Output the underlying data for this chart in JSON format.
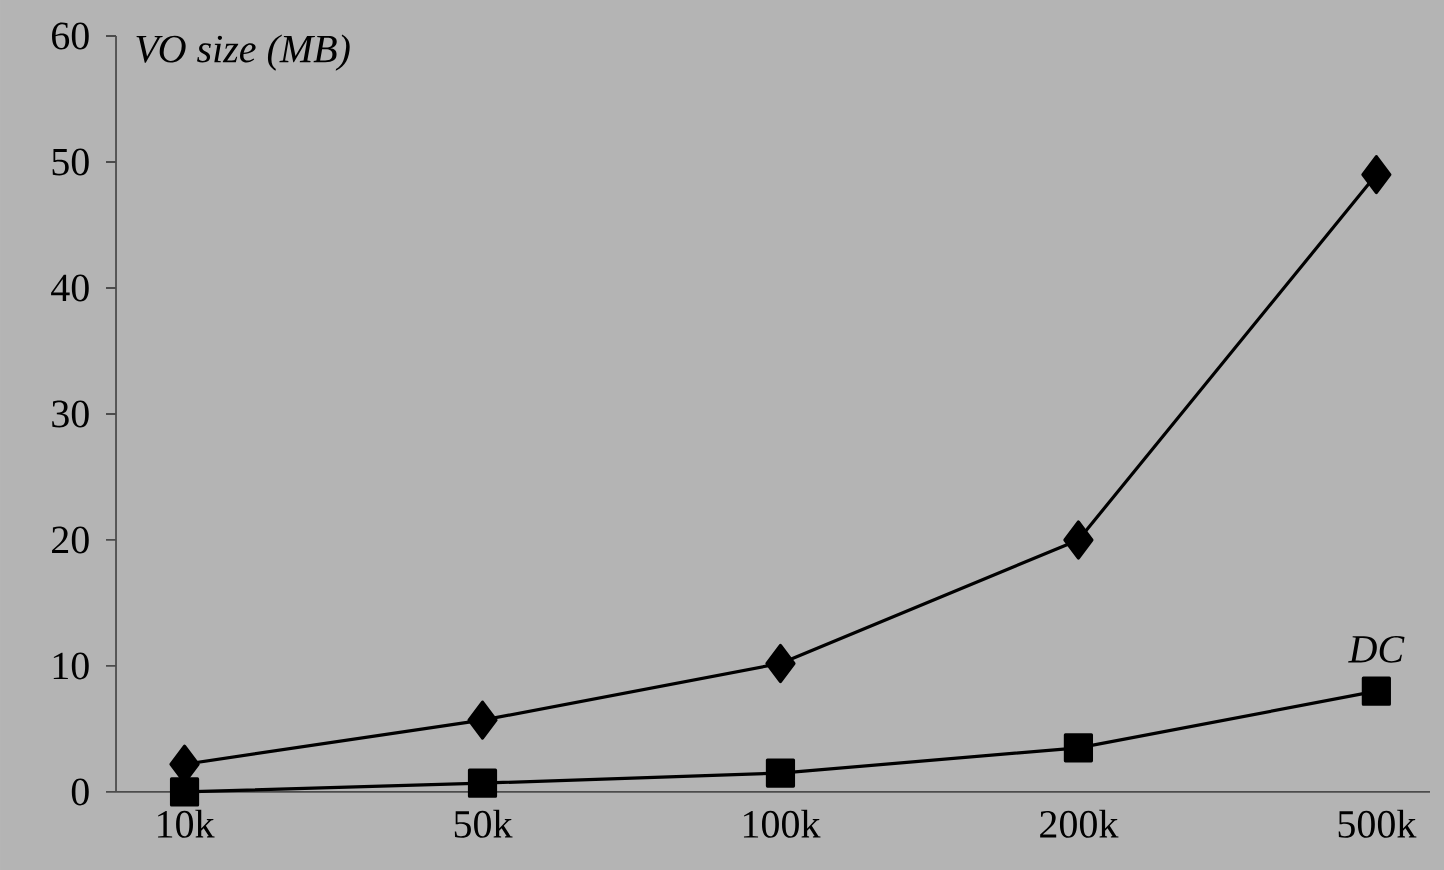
{
  "chart_data": {
    "type": "line",
    "ylabel": "VO size (MB)",
    "categories": [
      "10k",
      "50k",
      "100k",
      "200k",
      "500k"
    ],
    "ylim": [
      0,
      60
    ],
    "yticks": [
      0,
      10,
      20,
      30,
      40,
      50,
      60
    ],
    "series": [
      {
        "values": [
          2.2,
          5.7,
          10.2,
          20,
          49
        ],
        "color": "#000000",
        "marker": "diamond"
      },
      {
        "name": "DC",
        "values": [
          0,
          0.7,
          1.5,
          3.5,
          8
        ],
        "color": "#000000",
        "marker": "square"
      }
    ]
  }
}
